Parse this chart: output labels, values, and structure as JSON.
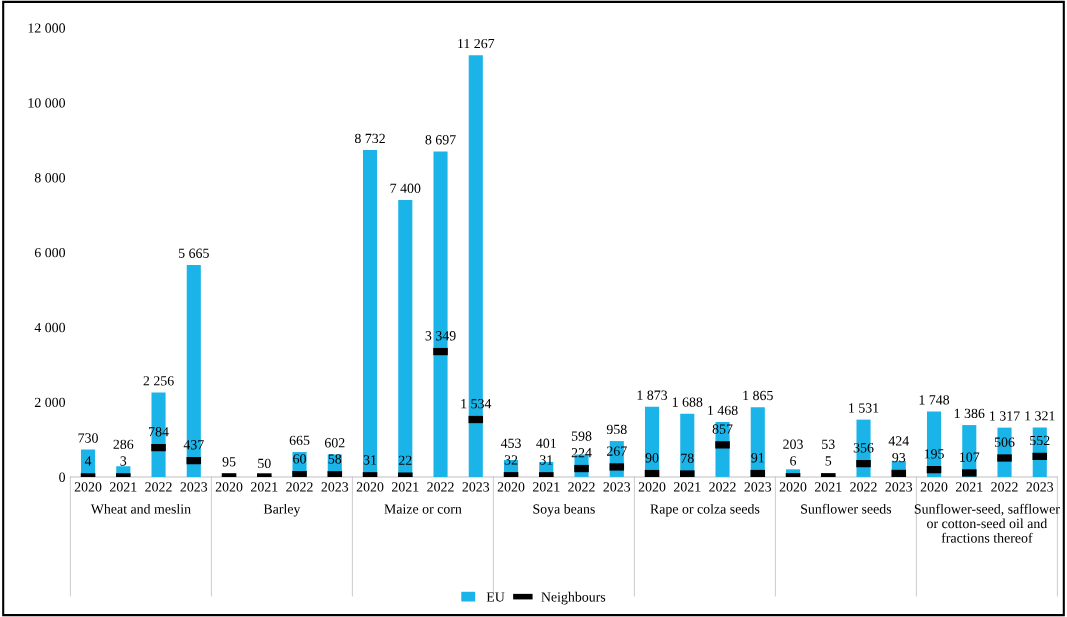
{
  "chart_data": {
    "type": "bar",
    "categories": [
      "2020",
      "2021",
      "2022",
      "2023",
      "2020",
      "2021",
      "2022",
      "2023",
      "2020",
      "2021",
      "2022",
      "2023",
      "2020",
      "2021",
      "2022",
      "2023",
      "2020",
      "2021",
      "2022",
      "2023",
      "2020",
      "2021",
      "2022",
      "2023",
      "2020",
      "2021",
      "2022",
      "2023"
    ],
    "annotations": [
      "Wheat and meslin",
      "Barley",
      "Maize or corn",
      "Soya beans",
      "Rape or colza seeds",
      "Sunflower seeds",
      "Sunflower-seed, safflower or cotton-seed oil and fractions thereof"
    ],
    "series": [
      {
        "name": "EU",
        "color": "#1ab4e8",
        "values": [
          730,
          286,
          2256,
          5665,
          95,
          50,
          665,
          602,
          8732,
          7400,
          8697,
          11267,
          453,
          401,
          598,
          958,
          1873,
          1688,
          1468,
          1865,
          203,
          53,
          1531,
          424,
          1748,
          1386,
          1317,
          1321
        ],
        "value_labels": [
          "730",
          "286",
          "2 256",
          "5 665",
          "95",
          "50",
          "665",
          "602",
          "8 732",
          "7 400",
          "8 697",
          "11 267",
          "453",
          "401",
          "598",
          "958",
          "1 873",
          "1 688",
          "1 468",
          "1 865",
          "203",
          "53",
          "1 531",
          "424",
          "1 748",
          "1 386",
          "1 317",
          "1 321"
        ]
      },
      {
        "name": "Neighbours",
        "type": "scatter",
        "color": "#000000",
        "values": [
          4,
          3,
          784,
          437,
          0,
          0,
          60,
          58,
          31,
          22,
          3349,
          1534,
          32,
          31,
          224,
          267,
          90,
          78,
          857,
          91,
          6,
          5,
          356,
          93,
          195,
          107,
          506,
          552
        ],
        "value_labels": [
          "4",
          "3",
          "784",
          "437",
          null,
          null,
          "60",
          "58",
          "31",
          "22",
          "3 349",
          "1 534",
          "32",
          "31",
          "224",
          "267",
          "90",
          "78",
          "857",
          "91",
          "6",
          "5",
          "356",
          "93",
          "195",
          "107",
          "506",
          "552"
        ]
      }
    ],
    "ylim": [
      0,
      12000
    ],
    "yticks": [
      {
        "value": 0,
        "label": "0"
      },
      {
        "value": 2000,
        "label": "2 000"
      },
      {
        "value": 4000,
        "label": "4 000"
      },
      {
        "value": 6000,
        "label": "6 000"
      },
      {
        "value": 8000,
        "label": "8 000"
      },
      {
        "value": 10000,
        "label": "10 000"
      },
      {
        "value": 12000,
        "label": "12 000"
      }
    ],
    "grid": false,
    "legend": "bottom"
  }
}
